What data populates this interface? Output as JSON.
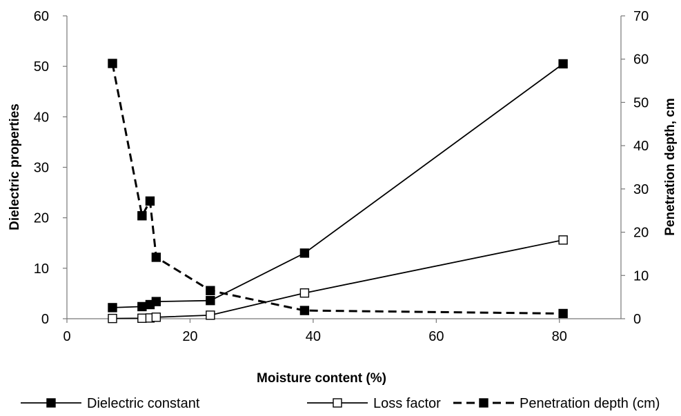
{
  "chart_data": {
    "type": "line",
    "title": "",
    "xlabel": "Moisture content (%)",
    "ylabel": "Dielectric properties",
    "y2label": "Penetration depth, cm",
    "xlim": [
      0,
      90
    ],
    "ylim": [
      0,
      60
    ],
    "y2lim": [
      0,
      70
    ],
    "xticks": [
      0,
      20,
      40,
      60,
      80
    ],
    "yticks": [
      0,
      10,
      20,
      30,
      40,
      50,
      60
    ],
    "y2ticks": [
      0,
      10,
      20,
      30,
      40,
      50,
      60,
      70
    ],
    "grid": false,
    "legend_position": "bottom",
    "series": [
      {
        "name": "Dielectric constant",
        "axis": "left",
        "line_style": "solid",
        "marker": "filled-square",
        "color": "#000000",
        "x": [
          7.4,
          12.2,
          13.5,
          14.5,
          23.3,
          38.6,
          80.6
        ],
        "y": [
          2.2,
          2.4,
          2.8,
          3.4,
          3.6,
          13.0,
          50.5
        ]
      },
      {
        "name": "Loss factor",
        "axis": "left",
        "line_style": "solid",
        "marker": "open-square",
        "color": "#000000",
        "x": [
          7.4,
          12.2,
          13.5,
          14.5,
          23.3,
          38.6,
          80.6
        ],
        "y": [
          0.05,
          0.1,
          0.15,
          0.3,
          0.7,
          5.1,
          15.6
        ]
      },
      {
        "name": "Penetration depth (cm)",
        "axis": "right",
        "line_style": "dashed",
        "marker": "filled-square",
        "color": "#000000",
        "x": [
          7.4,
          12.2,
          13.5,
          14.5,
          23.3,
          38.6,
          80.6
        ],
        "y": [
          59.0,
          23.8,
          27.2,
          14.2,
          6.5,
          1.9,
          1.2
        ]
      }
    ]
  }
}
